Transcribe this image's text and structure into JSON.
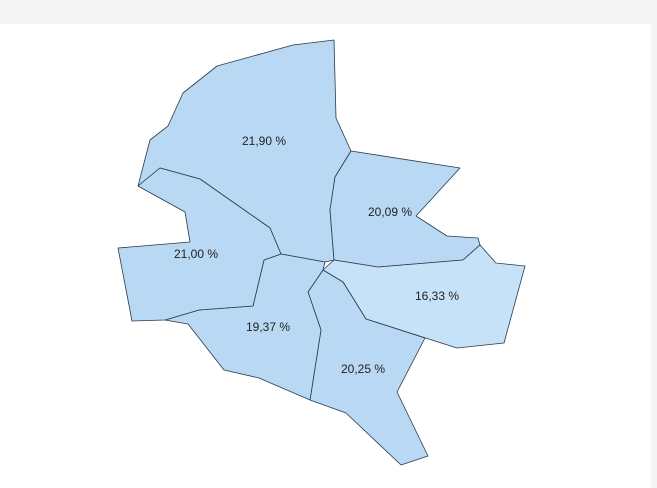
{
  "map": {
    "regions": [
      {
        "label": "21,90 %",
        "color": "#b8d8f4"
      },
      {
        "label": "20,09 %",
        "color": "#b8d8f4"
      },
      {
        "label": "16,33 %",
        "color": "#c6e2f8"
      },
      {
        "label": "20,25 %",
        "color": "#b8d8f4"
      },
      {
        "label": "19,37 %",
        "color": "#b8d8f4"
      },
      {
        "label": "21,00 %",
        "color": "#b8d8f4"
      }
    ]
  }
}
